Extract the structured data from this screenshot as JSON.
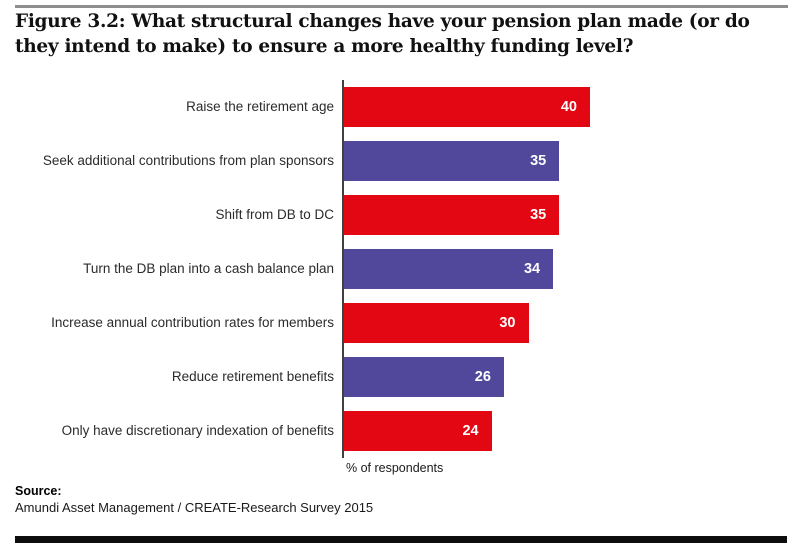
{
  "title": "Figure 3.2: What structural changes have your pension plan made (or do they intend to make) to ensure a more healthy funding level?",
  "chart_data": {
    "type": "bar",
    "orientation": "horizontal",
    "categories": [
      "Raise the retirement age",
      "Seek additional contributions from plan sponsors",
      "Shift from DB to DC",
      "Turn the DB plan into a cash balance plan",
      "Increase annual contribution rates for members",
      "Reduce retirement benefits",
      "Only have discretionary indexation of benefits"
    ],
    "values": [
      40,
      35,
      35,
      34,
      30,
      26,
      24
    ],
    "bar_colors": [
      "#e30613",
      "#51489b",
      "#e30613",
      "#51489b",
      "#e30613",
      "#51489b",
      "#e30613"
    ],
    "value_labels_inside": true,
    "xlabel": "% of respondents",
    "xlim": [
      0,
      45
    ],
    "grid": false,
    "legend": false
  },
  "colors": {
    "red": "#e30613",
    "purple": "#51489b",
    "axis": "#404040",
    "top_rule": "#8e8e8e",
    "bottom_rule": "#0d0d0d"
  },
  "source": {
    "label": "Source:",
    "text": "Amundi Asset Management / CREATE-Research Survey 2015"
  }
}
